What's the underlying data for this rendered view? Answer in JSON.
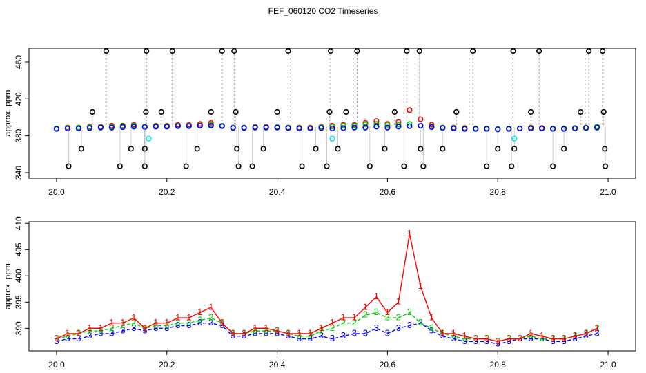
{
  "chart_data": [
    {
      "type": "scatter",
      "title": "FEF_060120  CO2 Timeseries",
      "ylabel": "approx. ppm",
      "xlim": [
        19.95,
        21.05
      ],
      "ylim": [
        334,
        475
      ],
      "xticks": [
        {
          "value": 20,
          "label": "20.0"
        },
        20.2,
        20.4,
        20.6,
        20.8,
        {
          "value": 21,
          "label": "21.0"
        }
      ],
      "yticks": [
        340,
        380,
        420,
        460
      ],
      "x": [
        20,
        20.02,
        20.04,
        20.06,
        20.08,
        20.1,
        20.12,
        20.14,
        20.16,
        20.18,
        20.2,
        20.22,
        20.24,
        20.26,
        20.28,
        20.3,
        20.32,
        20.34,
        20.36,
        20.38,
        20.4,
        20.42,
        20.44,
        20.46,
        20.48,
        20.5,
        20.52,
        20.54,
        20.56,
        20.58,
        20.6,
        20.62,
        20.64,
        20.66,
        20.68,
        20.7,
        20.72,
        20.74,
        20.76,
        20.78,
        20.8,
        20.82,
        20.84,
        20.86,
        20.88,
        20.9,
        20.92,
        20.94,
        20.96,
        20.98
      ],
      "series": [
        {
          "color": "#ff0000",
          "values": [
            388,
            389,
            389,
            390,
            390,
            391,
            391,
            392,
            390,
            391,
            391,
            392,
            392,
            393,
            394,
            391,
            389,
            389,
            390,
            390,
            389.5,
            389,
            389,
            389,
            390,
            391,
            392,
            392,
            394,
            396,
            393,
            395,
            408,
            398,
            392,
            389,
            389,
            388.5,
            388,
            388,
            387.5,
            388,
            388,
            389,
            388.5,
            388,
            388,
            388.5,
            389,
            390
          ]
        },
        {
          "color": "#00cd00",
          "values": [
            388,
            388.5,
            389,
            389.5,
            389.5,
            390,
            390.5,
            391,
            390,
            390.5,
            390.5,
            391,
            391,
            391.5,
            392,
            391,
            389,
            389,
            389.5,
            389.5,
            389.5,
            389,
            388.5,
            388.5,
            389.5,
            390,
            391,
            391,
            392.5,
            393,
            392,
            392,
            393,
            391,
            390,
            389,
            388.5,
            388,
            388,
            388,
            387.5,
            388,
            388,
            388.5,
            388,
            388,
            388,
            388.5,
            389,
            390
          ]
        },
        {
          "color": "#0000ff",
          "values": [
            387.5,
            388,
            388,
            388.5,
            389,
            389,
            389.5,
            390,
            389.5,
            390,
            390,
            390.5,
            390.5,
            391,
            391,
            390.5,
            388.5,
            388.5,
            389,
            389,
            389,
            388.5,
            388,
            388,
            388.5,
            388,
            388.5,
            389,
            389,
            390,
            389,
            390,
            390.5,
            391,
            389.5,
            388.5,
            388,
            387.5,
            387.5,
            387.5,
            387,
            387.5,
            388,
            388,
            388,
            387.5,
            387.5,
            388,
            388.5,
            389
          ]
        },
        {
          "color": "#000000",
          "stems": true,
          "x": [
            20.022,
            20.045,
            20.065,
            20.09,
            20.115,
            20.135,
            20.16,
            20.16,
            20.162,
            20.163,
            20.19,
            20.21,
            20.235,
            20.255,
            20.28,
            20.3,
            20.322,
            20.325,
            20.327,
            20.33,
            20.355,
            20.375,
            20.4,
            20.42,
            20.445,
            20.47,
            20.49,
            20.495,
            20.497,
            20.51,
            20.525,
            20.545,
            20.568,
            20.595,
            20.613,
            20.63,
            20.635,
            20.658,
            20.66,
            20.665,
            20.7,
            20.725,
            20.755,
            20.78,
            20.8,
            20.825,
            20.828,
            20.83,
            20.86,
            20.875,
            20.9,
            20.92,
            20.95,
            20.965,
            20.99,
            20.992,
            20.994,
            20.995
          ],
          "values": [
            347,
            366,
            406,
            472,
            347,
            366,
            347,
            366,
            406,
            472,
            406,
            472,
            347,
            366,
            406,
            472,
            472,
            406,
            366,
            347,
            347,
            366,
            406,
            472,
            347,
            366,
            347,
            406,
            472,
            366,
            406,
            472,
            347,
            366,
            406,
            347,
            472,
            472,
            366,
            347,
            366,
            406,
            472,
            347,
            366,
            347,
            472,
            366,
            406,
            472,
            347,
            366,
            406,
            472,
            472,
            406,
            366,
            347
          ]
        },
        {
          "color": "#00e5ee",
          "x": [
            20.167,
            20.5,
            20.83
          ],
          "values": [
            377,
            377,
            377
          ]
        }
      ]
    },
    {
      "type": "line",
      "ylabel": "approx. ppm",
      "xlim": [
        19.95,
        21.05
      ],
      "ylim": [
        385.7,
        410.3
      ],
      "xticks": [
        {
          "value": 20,
          "label": "20.0"
        },
        20.2,
        20.4,
        20.6,
        20.8,
        {
          "value": 21,
          "label": "21.0"
        }
      ],
      "yticks": [
        390,
        395,
        400,
        405,
        410
      ],
      "x": [
        20,
        20.02,
        20.04,
        20.06,
        20.08,
        20.1,
        20.12,
        20.14,
        20.16,
        20.18,
        20.2,
        20.22,
        20.24,
        20.26,
        20.28,
        20.3,
        20.32,
        20.34,
        20.36,
        20.38,
        20.4,
        20.42,
        20.44,
        20.46,
        20.48,
        20.5,
        20.52,
        20.54,
        20.56,
        20.58,
        20.6,
        20.62,
        20.64,
        20.66,
        20.68,
        20.7,
        20.72,
        20.74,
        20.76,
        20.78,
        20.8,
        20.82,
        20.84,
        20.86,
        20.88,
        20.9,
        20.92,
        20.94,
        20.96,
        20.98
      ],
      "series": [
        {
          "symbol": "1",
          "color": "#ff0000",
          "values": [
            388,
            389,
            389,
            390,
            390,
            391,
            391,
            392,
            390,
            391,
            391,
            392,
            392,
            393,
            394,
            391,
            389,
            389,
            390,
            390,
            389.5,
            389,
            389,
            389,
            390,
            391,
            392,
            392,
            394,
            396,
            393,
            395,
            408,
            398,
            392,
            389,
            389,
            388.5,
            388,
            388,
            387.5,
            388,
            388,
            389,
            388.5,
            388,
            388,
            388.5,
            389,
            390
          ]
        },
        {
          "symbol": "2",
          "color": "#00cd00",
          "values": [
            388,
            388.5,
            389,
            389.5,
            389.5,
            390,
            390.5,
            391,
            390,
            390.5,
            390.5,
            391,
            391,
            391.5,
            392,
            391,
            389,
            389,
            389.5,
            389.5,
            389.5,
            389,
            388.5,
            388.5,
            389.5,
            390,
            391,
            391,
            392.5,
            393,
            392,
            392,
            393,
            391,
            390,
            389,
            388.5,
            388,
            388,
            388,
            387.5,
            388,
            388,
            388.5,
            388,
            388,
            388,
            388.5,
            389,
            390
          ]
        },
        {
          "symbol": "3",
          "color": "#0000ff",
          "values": [
            387.5,
            388,
            388,
            388.5,
            389,
            389,
            389.5,
            390,
            389.5,
            390,
            390,
            390.5,
            390.5,
            391,
            391,
            390.5,
            388.5,
            388.5,
            389,
            389,
            389,
            388.5,
            388,
            388,
            388.5,
            388,
            388.5,
            389,
            389,
            390,
            389,
            390,
            390.5,
            391,
            389.5,
            388.5,
            388,
            387.5,
            387.5,
            387.5,
            387,
            387.5,
            388,
            388,
            388,
            387.5,
            387.5,
            388,
            388.5,
            389
          ]
        }
      ]
    }
  ]
}
